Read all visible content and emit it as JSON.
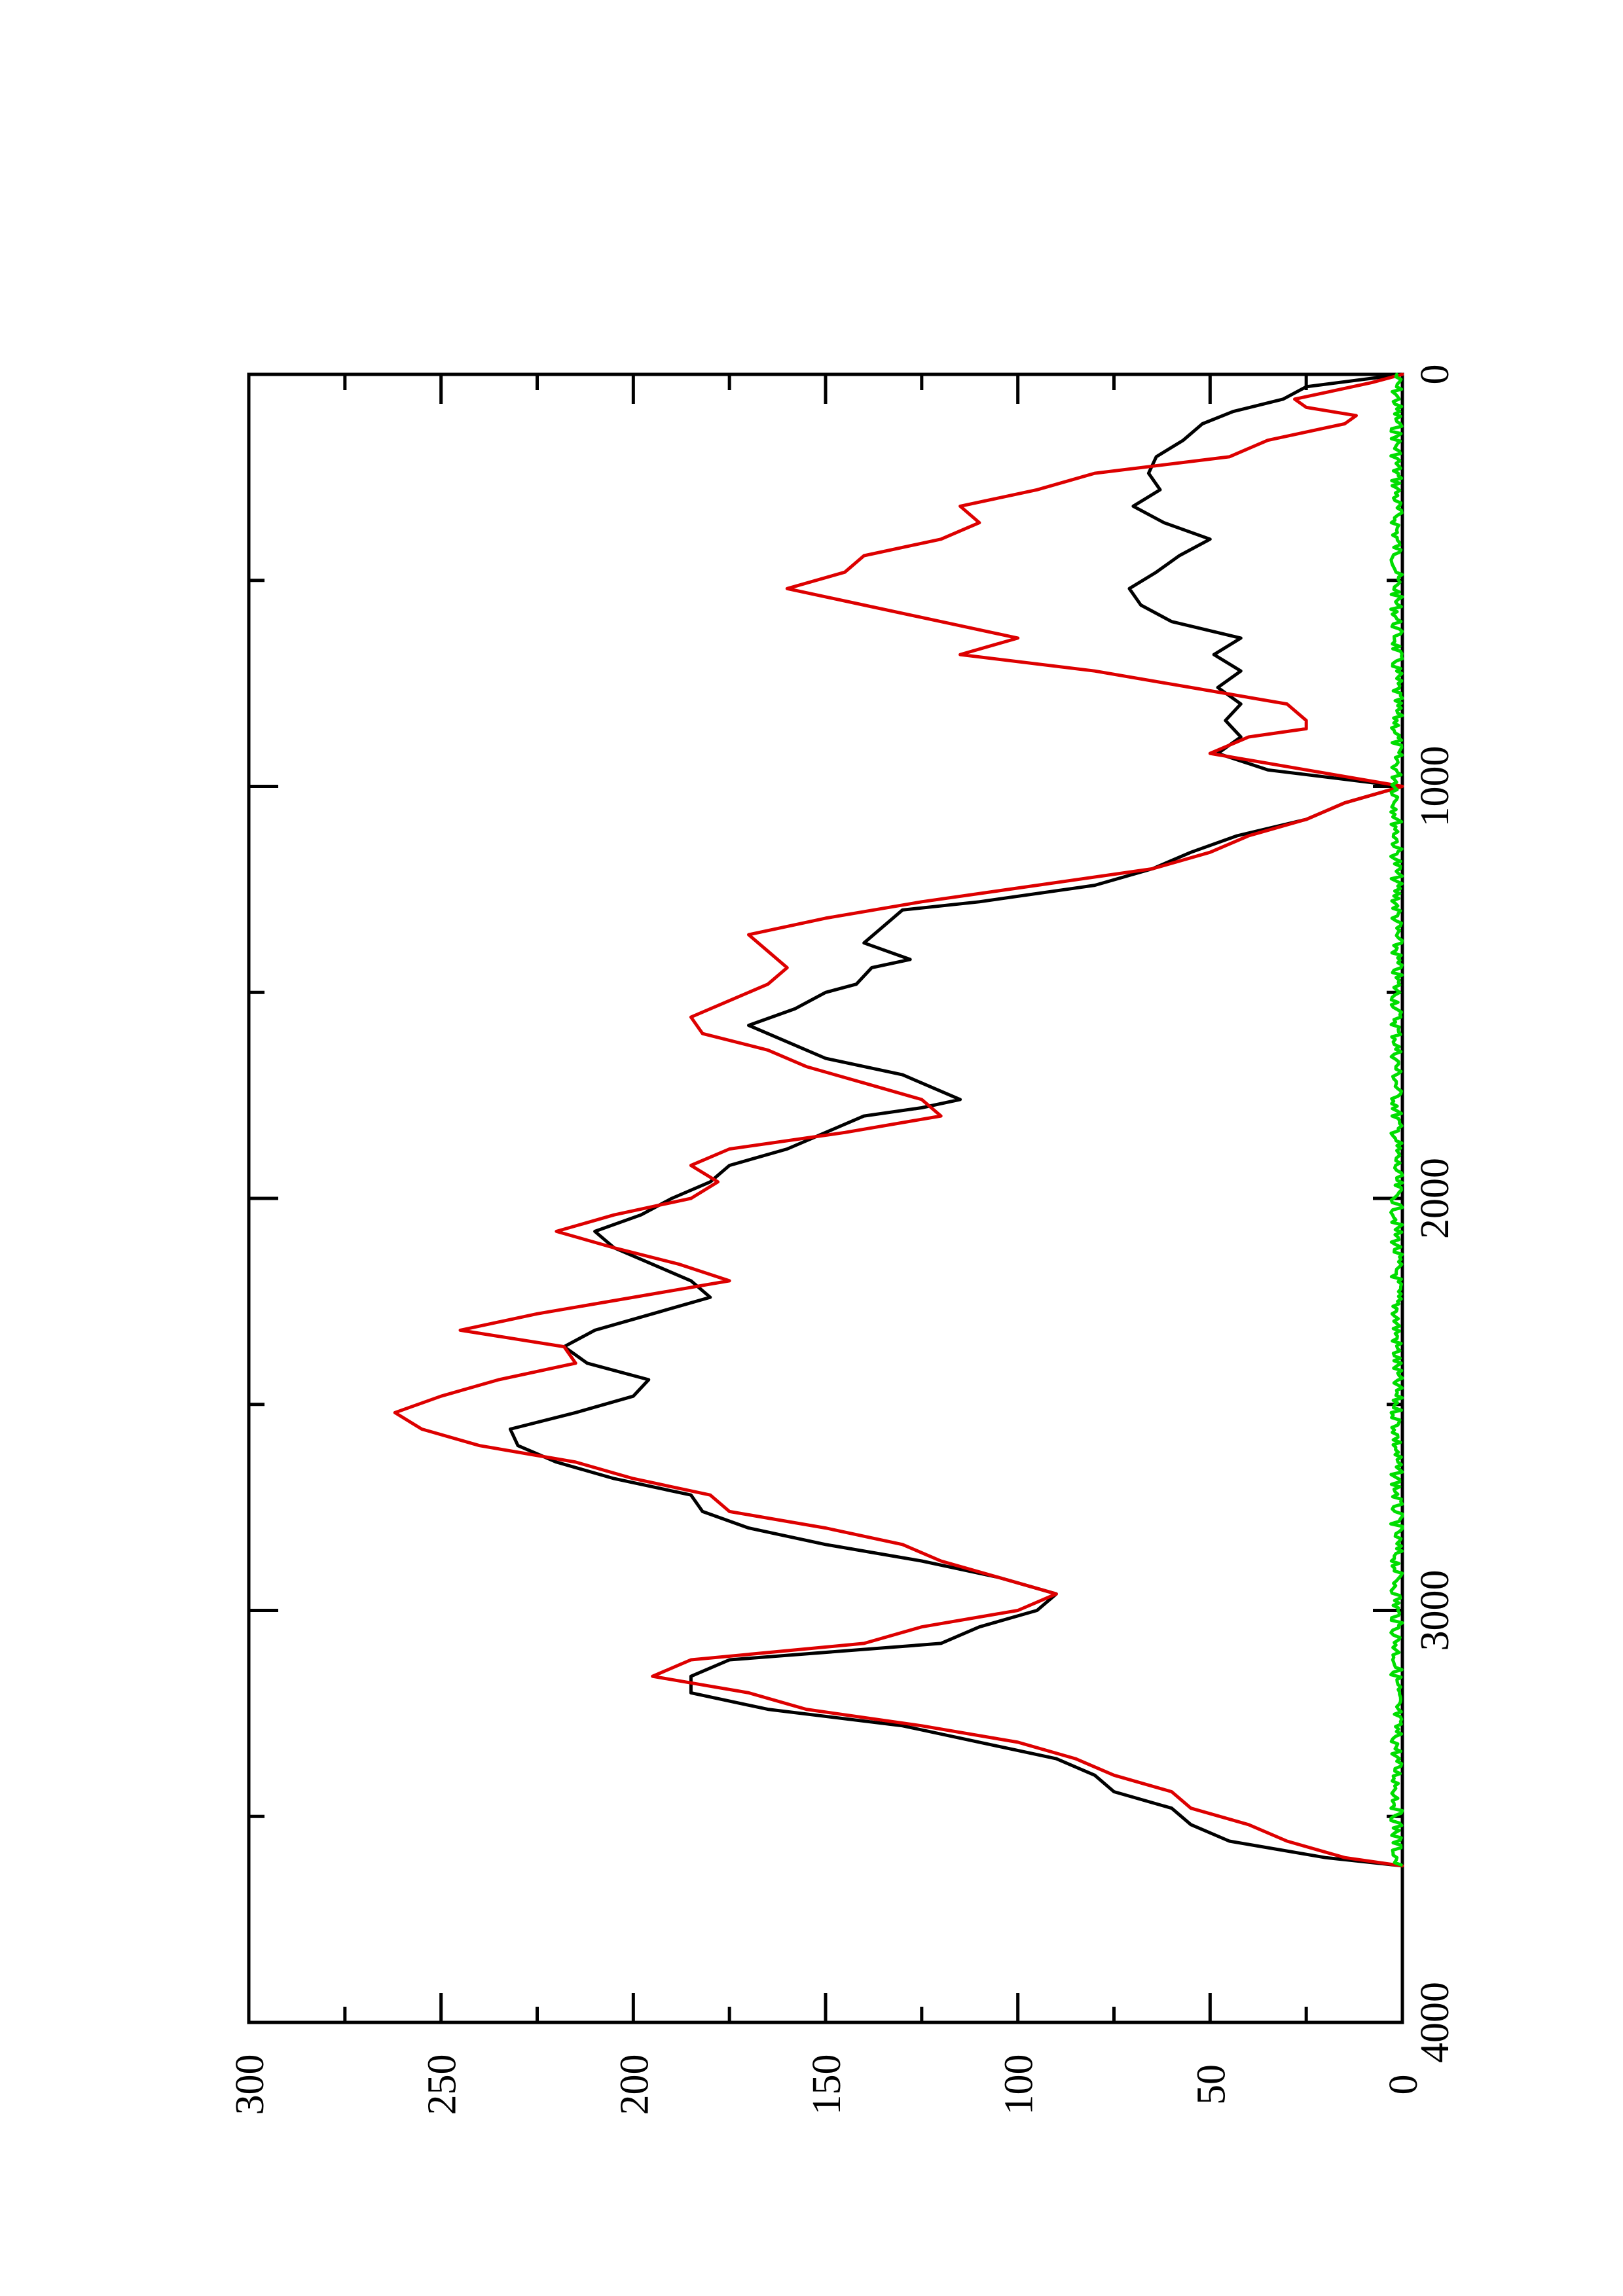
{
  "chart_data": {
    "type": "line",
    "title": "",
    "xlabel": "",
    "ylabel": "",
    "orientation": "rotated 90° counter-clockwise",
    "xlim": [
      0,
      4000
    ],
    "ylim": [
      0,
      300
    ],
    "x_ticks_major": [
      0,
      1000,
      2000,
      3000,
      4000
    ],
    "x_ticks_minor": [
      500,
      1500,
      2500,
      3500
    ],
    "y_ticks_major": [
      0,
      50,
      100,
      150,
      200,
      250,
      300
    ],
    "y_ticks_minor": [
      25,
      75,
      125,
      175,
      225,
      275
    ],
    "grid": false,
    "legend": "none",
    "series": [
      {
        "color": "#000000",
        "x": [
          0,
          30,
          60,
          90,
          120,
          160,
          200,
          240,
          280,
          320,
          360,
          400,
          440,
          480,
          520,
          560,
          600,
          640,
          680,
          720,
          760,
          800,
          840,
          880,
          920,
          960,
          1000,
          1040,
          1080,
          1120,
          1160,
          1200,
          1240,
          1280,
          1300,
          1340,
          1380,
          1420,
          1440,
          1480,
          1500,
          1540,
          1580,
          1620,
          1660,
          1700,
          1740,
          1760,
          1780,
          1800,
          1840,
          1880,
          1920,
          1960,
          2000,
          2040,
          2080,
          2120,
          2160,
          2200,
          2240,
          2280,
          2320,
          2360,
          2400,
          2440,
          2480,
          2520,
          2560,
          2600,
          2640,
          2680,
          2720,
          2760,
          2800,
          2840,
          2880,
          2920,
          2960,
          3000,
          3040,
          3080,
          3120,
          3160,
          3200,
          3240,
          3280,
          3320,
          3360,
          3400,
          3440,
          3480,
          3520,
          3560,
          3600,
          3620
        ],
        "y": [
          0,
          25,
          31,
          44,
          52,
          57,
          64,
          66,
          63,
          70,
          62,
          50,
          58,
          64,
          71,
          68,
          60,
          42,
          49,
          42,
          48,
          42,
          46,
          42,
          48,
          35,
          0,
          15,
          25,
          43,
          55,
          65,
          80,
          110,
          130,
          135,
          140,
          128,
          138,
          142,
          150,
          158,
          170,
          160,
          150,
          130,
          120,
          115,
          125,
          140,
          150,
          160,
          175,
          180,
          190,
          198,
          210,
          205,
          195,
          185,
          180,
          195,
          210,
          218,
          212,
          196,
          200,
          215,
          232,
          230,
          220,
          205,
          185,
          182,
          170,
          150,
          125,
          105,
          90,
          95,
          110,
          120,
          175,
          185,
          185,
          165,
          130,
          110,
          90,
          80,
          75,
          60,
          55,
          45,
          20,
          0
        ]
      },
      {
        "color": "#dd0000",
        "x": [
          0,
          20,
          40,
          60,
          80,
          100,
          120,
          160,
          200,
          240,
          280,
          320,
          360,
          400,
          440,
          480,
          520,
          560,
          600,
          640,
          680,
          720,
          760,
          800,
          840,
          860,
          880,
          920,
          960,
          1000,
          1040,
          1080,
          1120,
          1160,
          1200,
          1240,
          1280,
          1320,
          1360,
          1400,
          1440,
          1480,
          1520,
          1560,
          1600,
          1640,
          1680,
          1720,
          1760,
          1800,
          1840,
          1880,
          1920,
          1960,
          2000,
          2040,
          2080,
          2120,
          2160,
          2200,
          2240,
          2280,
          2320,
          2360,
          2400,
          2440,
          2480,
          2520,
          2560,
          2600,
          2640,
          2680,
          2720,
          2760,
          2800,
          2840,
          2880,
          2920,
          2960,
          3000,
          3040,
          3080,
          3120,
          3160,
          3200,
          3240,
          3280,
          3320,
          3360,
          3400,
          3440,
          3480,
          3520,
          3560,
          3600,
          3620
        ],
        "y": [
          0,
          8,
          18,
          28,
          25,
          12,
          15,
          35,
          45,
          80,
          95,
          115,
          110,
          120,
          140,
          145,
          160,
          140,
          120,
          100,
          115,
          80,
          55,
          30,
          25,
          25,
          40,
          50,
          25,
          0,
          15,
          25,
          40,
          50,
          65,
          95,
          125,
          150,
          170,
          165,
          160,
          165,
          175,
          185,
          182,
          165,
          155,
          140,
          125,
          120,
          145,
          175,
          185,
          178,
          185,
          205,
          220,
          205,
          188,
          175,
          200,
          225,
          245,
          218,
          215,
          235,
          250,
          262,
          255,
          240,
          215,
          200,
          180,
          175,
          150,
          130,
          120,
          105,
          90,
          100,
          125,
          140,
          185,
          195,
          170,
          155,
          125,
          100,
          85,
          75,
          60,
          55,
          40,
          30,
          15,
          0
        ]
      },
      {
        "color": "#00dd00",
        "x": [
          0,
          4000
        ],
        "y": [
          0,
          0
        ],
        "note_values": "noisy trace fluctuating near 0 (approx. 0–3) over x 0–3620"
      }
    ]
  }
}
